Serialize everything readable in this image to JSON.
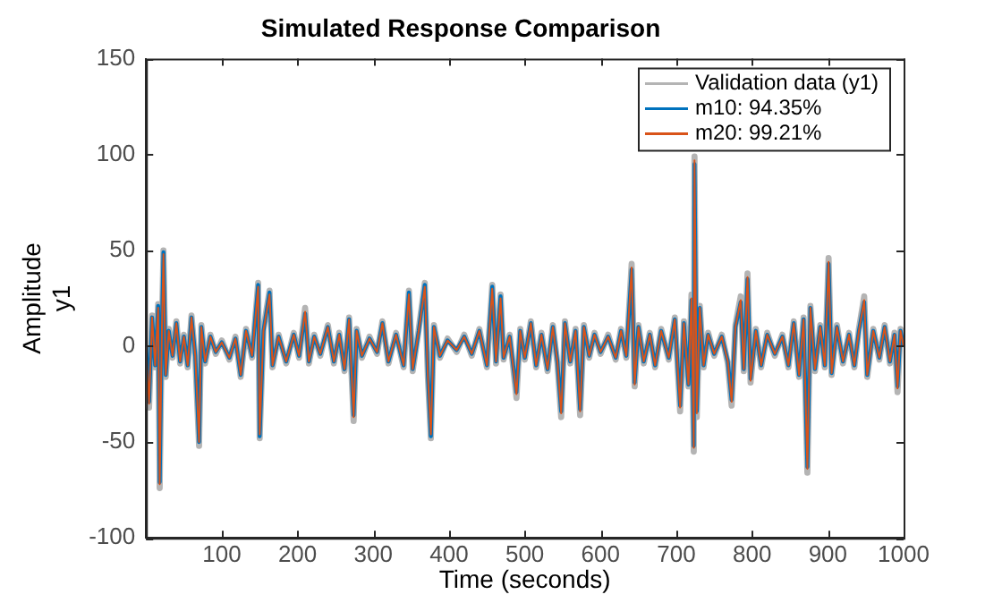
{
  "chart_data": {
    "type": "line",
    "title": "Simulated Response Comparison",
    "xlabel": "Time (seconds)",
    "ylabel": "Amplitude\ny1",
    "x": [
      0,
      4,
      8,
      12,
      16,
      18,
      21,
      23,
      26,
      30,
      35,
      40,
      45,
      50,
      55,
      60,
      65,
      70,
      73,
      78,
      85,
      92,
      100,
      110,
      118,
      125,
      132,
      140,
      148,
      150,
      155,
      163,
      167,
      175,
      185,
      195,
      202,
      210,
      215,
      222,
      230,
      240,
      248,
      255,
      262,
      268,
      274,
      278,
      285,
      295,
      305,
      312,
      320,
      330,
      340,
      347,
      352,
      360,
      368,
      372,
      376,
      380,
      388,
      398,
      410,
      420,
      430,
      440,
      450,
      457,
      462,
      468,
      472,
      480,
      489,
      494,
      500,
      508,
      515,
      522,
      530,
      537,
      543,
      548,
      553,
      560,
      567,
      573,
      578,
      585,
      592,
      600,
      610,
      620,
      627,
      634,
      641,
      645,
      650,
      657,
      665,
      672,
      680,
      690,
      698,
      705,
      710,
      716,
      720,
      723,
      724,
      727,
      731,
      736,
      742,
      750,
      760,
      768,
      773,
      778,
      785,
      789,
      794,
      798,
      805,
      812,
      820,
      830,
      840,
      848,
      855,
      862,
      868,
      873,
      877,
      883,
      890,
      896,
      901,
      905,
      912,
      920,
      928,
      935,
      941,
      948,
      952,
      960,
      968,
      975,
      982,
      988,
      992,
      996,
      1000
    ],
    "series": [
      {
        "name": "Validation data (y1)",
        "color": "#b4b4b4",
        "values": [
          0,
          -32,
          16,
          -11,
          22,
          -74,
          11,
          50,
          -16,
          9,
          -6,
          13,
          -9,
          6,
          -11,
          16,
          -6,
          -52,
          11,
          -9,
          6,
          -4,
          3,
          -7,
          5,
          -16,
          9,
          -6,
          33,
          -48,
          9,
          29,
          -11,
          6,
          -9,
          7,
          -6,
          20,
          -9,
          6,
          -5,
          11,
          -9,
          7,
          -13,
          15,
          -39,
          9,
          -6,
          5,
          -4,
          13,
          -9,
          7,
          -11,
          29,
          -13,
          9,
          33,
          -16,
          -48,
          11,
          -6,
          4,
          -3,
          6,
          -5,
          9,
          -11,
          32,
          -9,
          27,
          -7,
          6,
          -27,
          9,
          -7,
          13,
          -11,
          7,
          -13,
          11,
          -9,
          -37,
          13,
          -9,
          9,
          -36,
          11,
          -6,
          7,
          -4,
          6,
          -7,
          9,
          -6,
          43,
          -21,
          11,
          -9,
          7,
          -11,
          9,
          -7,
          15,
          -34,
          13,
          -21,
          27,
          -55,
          99,
          -37,
          21,
          -11,
          7,
          -5,
          6,
          -9,
          -31,
          11,
          26,
          -13,
          38,
          -19,
          9,
          -11,
          7,
          -5,
          6,
          -11,
          13,
          -16,
          15,
          -66,
          21,
          -13,
          11,
          -11,
          46,
          -15,
          11,
          -9,
          7,
          -11,
          9,
          26,
          -16,
          9,
          -7,
          11,
          -9,
          7,
          -24,
          9,
          0
        ]
      },
      {
        "name": "m10: 94.35%",
        "color": "#0072bd",
        "values": [
          0,
          -29,
          15,
          -10,
          21,
          -71,
          10,
          49,
          -15,
          8,
          -5,
          12,
          -8,
          5,
          -10,
          15,
          -5,
          -50,
          10,
          -8,
          5,
          -3,
          2,
          -6,
          4,
          -15,
          8,
          -5,
          32,
          -47,
          8,
          28,
          -10,
          5,
          -8,
          6,
          -5,
          17,
          -8,
          5,
          -4,
          10,
          -8,
          6,
          -12,
          14,
          -36,
          8,
          -5,
          4,
          -3,
          12,
          -8,
          6,
          -10,
          28,
          -12,
          8,
          32,
          -15,
          -47,
          10,
          -5,
          3,
          -2,
          5,
          -4,
          8,
          -10,
          31,
          -8,
          26,
          -6,
          5,
          -24,
          8,
          -6,
          12,
          -10,
          6,
          -12,
          10,
          -8,
          -34,
          12,
          -8,
          8,
          -33,
          10,
          -5,
          6,
          -3,
          5,
          -6,
          8,
          -5,
          40,
          -19,
          10,
          -8,
          6,
          -10,
          8,
          -6,
          14,
          -31,
          12,
          -20,
          24,
          -52,
          95,
          -34,
          20,
          -10,
          6,
          -4,
          5,
          -8,
          -28,
          10,
          23,
          -12,
          35,
          -17,
          8,
          -10,
          6,
          -4,
          5,
          -10,
          12,
          -15,
          14,
          -63,
          20,
          -12,
          10,
          -10,
          43,
          -14,
          10,
          -8,
          6,
          -10,
          8,
          23,
          -15,
          8,
          -6,
          10,
          -8,
          6,
          -21,
          8,
          0
        ]
      },
      {
        "name": "m20: 99.21%",
        "color": "#d95319",
        "values": [
          0,
          -30,
          15,
          -10,
          20,
          -72,
          10,
          48,
          -15,
          8,
          -5,
          12,
          -8,
          5,
          -10,
          15,
          -5,
          -50,
          10,
          -8,
          5,
          -3,
          2,
          -6,
          4,
          -15,
          8,
          -5,
          31,
          -46,
          8,
          27,
          -10,
          5,
          -8,
          6,
          -5,
          18,
          -8,
          5,
          -4,
          10,
          -8,
          6,
          -12,
          14,
          -37,
          8,
          -5,
          4,
          -3,
          12,
          -8,
          6,
          -10,
          27,
          -12,
          8,
          31,
          -15,
          -46,
          10,
          -5,
          3,
          -2,
          5,
          -4,
          8,
          -10,
          30,
          -8,
          25,
          -6,
          5,
          -25,
          8,
          -6,
          12,
          -10,
          6,
          -12,
          10,
          -8,
          -35,
          12,
          -8,
          8,
          -34,
          10,
          -5,
          6,
          -3,
          5,
          -6,
          8,
          -5,
          41,
          -20,
          10,
          -8,
          6,
          -10,
          8,
          -6,
          14,
          -32,
          12,
          -20,
          25,
          -53,
          97,
          -35,
          20,
          -10,
          6,
          -4,
          5,
          -8,
          -29,
          10,
          24,
          -12,
          36,
          -18,
          8,
          -10,
          6,
          -4,
          5,
          -10,
          12,
          -15,
          14,
          -64,
          20,
          -12,
          10,
          -10,
          44,
          -14,
          10,
          -8,
          6,
          -10,
          8,
          24,
          -15,
          8,
          -6,
          10,
          -8,
          6,
          -22,
          8,
          0
        ]
      }
    ],
    "xlim": [
      0,
      1000
    ],
    "xticks": [
      100,
      200,
      300,
      400,
      500,
      600,
      700,
      800,
      900,
      1000
    ],
    "ylim": [
      -100,
      150
    ],
    "yticks": [
      -100,
      -50,
      0,
      50,
      100,
      150
    ],
    "legend": "top right",
    "marker": "none",
    "line_style": "solid"
  }
}
